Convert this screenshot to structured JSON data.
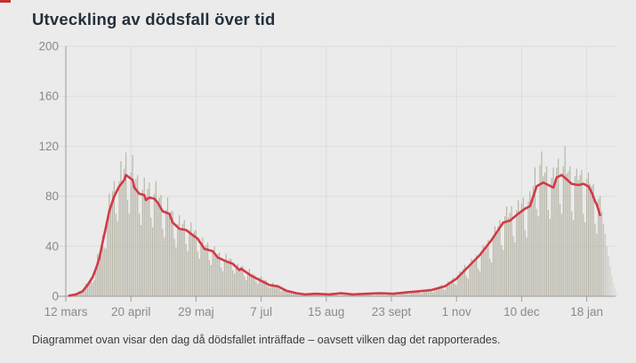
{
  "page": {
    "background": "#ebebeb",
    "accent_sliver_color": "#c0332e"
  },
  "header": {
    "title": "Utveckling av dödsfall över tid"
  },
  "footer": {
    "caption": "Diagrammet ovan visar den dag då dödsfallet inträffade – oavsett vilken dag det rapporterades."
  },
  "chart_data": {
    "type": "bar+line",
    "title": "Utveckling av dödsfall över tid",
    "ylim": [
      0,
      200
    ],
    "yticks": [
      0,
      40,
      80,
      120,
      160,
      200
    ],
    "xticks": [
      {
        "label": "12 mars",
        "day": 0
      },
      {
        "label": "20 april",
        "day": 39
      },
      {
        "label": "29 maj",
        "day": 78
      },
      {
        "label": "7 jul",
        "day": 117
      },
      {
        "label": "15 aug",
        "day": 156
      },
      {
        "label": "23 sept",
        "day": 195
      },
      {
        "label": "1 nov",
        "day": 234
      },
      {
        "label": "10 dec",
        "day": 273
      },
      {
        "label": "18 jan",
        "day": 312
      }
    ],
    "grid": true,
    "legend": "none",
    "bar_color": "#b8b5a7",
    "line_color": "#d23a46",
    "grid_color": "#dcdcdc",
    "axis_color": "#9c9c9c",
    "tick_label_color": "#8a8a8a",
    "faded_from_day": 320,
    "bars": [
      1,
      0,
      0,
      1,
      1,
      2,
      1,
      2,
      4,
      3,
      3,
      7,
      10,
      9,
      12,
      15,
      11,
      13,
      23,
      34,
      31,
      38,
      49,
      39,
      38,
      64,
      82,
      72,
      84,
      92,
      66,
      60,
      92,
      108,
      92,
      102,
      115,
      77,
      66,
      99,
      113,
      87,
      94,
      97,
      66,
      57,
      85,
      95,
      77,
      86,
      91,
      63,
      55,
      82,
      92,
      75,
      79,
      81,
      54,
      47,
      69,
      79,
      66,
      68,
      68,
      46,
      39,
      58,
      65,
      54,
      58,
      61,
      42,
      36,
      53,
      59,
      48,
      52,
      53,
      36,
      30,
      43,
      47,
      38,
      41,
      43,
      29,
      25,
      36,
      40,
      32,
      34,
      35,
      23,
      20,
      29,
      34,
      27,
      30,
      30,
      21,
      18,
      24,
      26,
      21,
      24,
      24,
      16,
      13,
      19,
      22,
      17,
      18,
      17,
      12,
      10,
      15,
      16,
      13,
      13,
      13,
      8,
      7,
      9,
      11,
      9,
      9,
      9,
      6,
      4,
      6,
      6,
      5,
      4,
      5,
      3,
      2,
      3,
      3,
      3,
      2,
      2,
      1,
      1,
      2,
      2,
      2,
      2,
      3,
      1,
      1,
      2,
      3,
      2,
      2,
      2,
      1,
      1,
      2,
      3,
      2,
      2,
      2,
      1,
      1,
      3,
      2,
      2,
      2,
      2,
      1,
      1,
      2,
      2,
      1,
      2,
      3,
      1,
      1,
      2,
      2,
      2,
      3,
      2,
      1,
      1,
      2,
      3,
      2,
      3,
      3,
      1,
      1,
      3,
      3,
      2,
      3,
      3,
      2,
      1,
      3,
      3,
      3,
      3,
      4,
      2,
      2,
      3,
      4,
      3,
      4,
      5,
      3,
      2,
      4,
      5,
      4,
      6,
      6,
      4,
      3,
      6,
      7,
      6,
      8,
      9,
      6,
      5,
      10,
      12,
      11,
      13,
      15,
      10,
      9,
      17,
      20,
      18,
      22,
      25,
      16,
      14,
      26,
      30,
      26,
      30,
      33,
      22,
      20,
      36,
      41,
      36,
      41,
      45,
      30,
      27,
      49,
      56,
      49,
      56,
      61,
      41,
      37,
      64,
      72,
      63,
      67,
      72,
      48,
      43,
      69,
      77,
      67,
      74,
      79,
      53,
      47,
      76,
      84,
      74,
      88,
      103,
      70,
      64,
      105,
      116,
      96,
      99,
      104,
      69,
      62,
      95,
      103,
      92,
      103,
      110,
      74,
      66,
      104,
      120,
      98,
      100,
      104,
      68,
      61,
      96,
      102,
      93,
      97,
      101,
      66,
      59,
      94,
      99,
      90,
      88,
      90,
      58,
      50,
      78,
      80,
      68,
      58,
      50,
      40,
      32,
      24,
      17,
      11,
      6,
      3
    ],
    "line_points": [
      [
        2,
        0.5
      ],
      [
        6,
        1.5
      ],
      [
        10,
        4
      ],
      [
        13,
        9
      ],
      [
        16,
        15
      ],
      [
        18,
        22
      ],
      [
        20,
        30
      ],
      [
        22,
        43
      ],
      [
        24,
        55
      ],
      [
        26,
        68
      ],
      [
        29,
        80
      ],
      [
        32,
        88
      ],
      [
        35,
        93
      ],
      [
        36,
        97
      ],
      [
        38,
        95
      ],
      [
        40,
        93
      ],
      [
        41,
        87
      ],
      [
        44,
        82
      ],
      [
        47,
        81
      ],
      [
        48,
        77
      ],
      [
        50,
        79
      ],
      [
        53,
        78
      ],
      [
        55,
        75
      ],
      [
        58,
        68
      ],
      [
        62,
        66
      ],
      [
        64,
        59
      ],
      [
        68,
        54
      ],
      [
        72,
        53
      ],
      [
        75,
        50
      ],
      [
        79,
        46
      ],
      [
        83,
        38
      ],
      [
        88,
        36
      ],
      [
        91,
        31
      ],
      [
        96,
        28
      ],
      [
        100,
        26
      ],
      [
        104,
        21
      ],
      [
        105,
        22
      ],
      [
        111,
        16.5
      ],
      [
        116,
        13
      ],
      [
        122,
        9
      ],
      [
        127,
        8
      ],
      [
        132,
        4.5
      ],
      [
        138,
        2.5
      ],
      [
        143,
        1.5
      ],
      [
        150,
        2
      ],
      [
        158,
        1.5
      ],
      [
        165,
        2.5
      ],
      [
        172,
        1.5
      ],
      [
        180,
        2
      ],
      [
        188,
        2.5
      ],
      [
        196,
        2
      ],
      [
        203,
        3
      ],
      [
        211,
        4
      ],
      [
        219,
        5
      ],
      [
        227,
        8
      ],
      [
        234,
        14
      ],
      [
        241,
        23.5
      ],
      [
        248,
        33
      ],
      [
        255,
        45
      ],
      [
        262,
        59
      ],
      [
        266,
        60.5
      ],
      [
        271,
        66
      ],
      [
        275,
        70
      ],
      [
        278,
        72
      ],
      [
        282,
        88
      ],
      [
        286,
        91
      ],
      [
        289,
        89
      ],
      [
        292,
        87
      ],
      [
        294,
        95
      ],
      [
        297,
        97
      ],
      [
        300,
        93.5
      ],
      [
        303,
        90
      ],
      [
        307,
        89
      ],
      [
        310,
        90
      ],
      [
        313,
        88
      ],
      [
        315,
        83
      ],
      [
        317,
        76
      ],
      [
        318,
        73.5
      ],
      [
        320,
        65
      ]
    ]
  }
}
